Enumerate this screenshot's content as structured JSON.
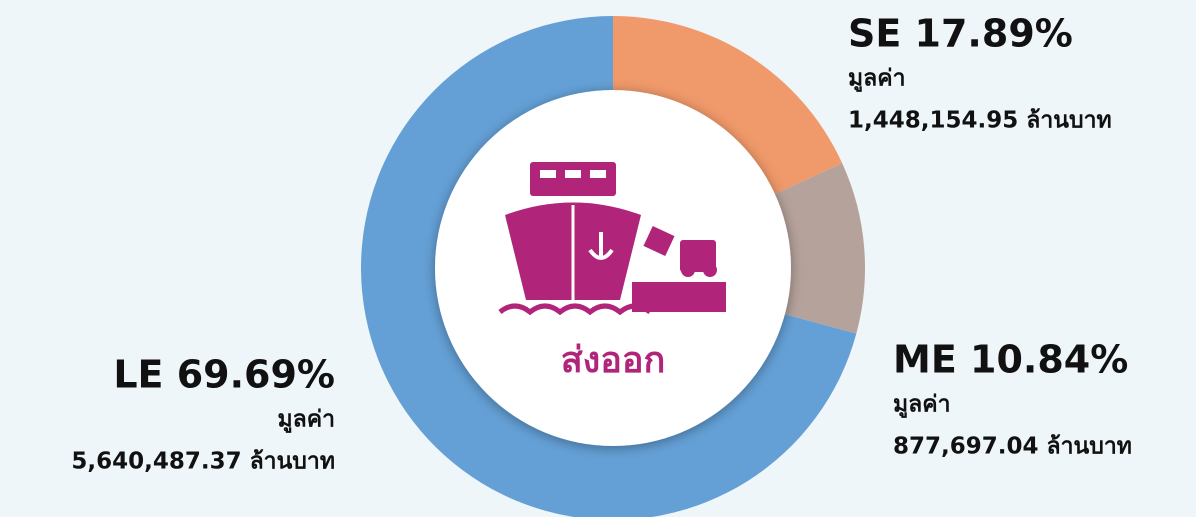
{
  "chart_data": {
    "type": "pie",
    "donut": true,
    "values": [
      17.89,
      10.84,
      69.69
    ],
    "value_labels": [
      "SE 17.89%",
      "ME 10.84%",
      "LE 69.69%"
    ],
    "colors": [
      "#f0996a",
      "#b5a29b",
      "#64a0d6"
    ],
    "amount_caption": "มูลค่า",
    "amount_labels": [
      "1,448,154.95 ล้านบาท",
      "877,697.04 ล้านบาท",
      "5,640,487.37 ล้านบาท"
    ],
    "center_label": "ส่งออก"
  }
}
